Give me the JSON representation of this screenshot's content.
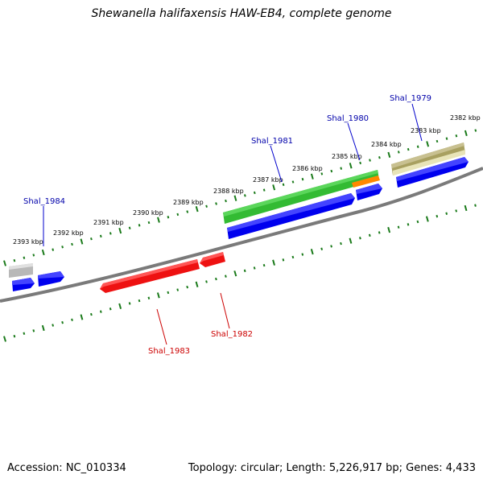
{
  "title": "Shewanella halifaxensis HAW-EB4, complete genome",
  "footer": {
    "accession": "Accession: NC_010334",
    "summary": "Topology: circular; Length: 5,226,917 bp; Genes: 4,433"
  },
  "colors": {
    "backbone": "#7a7a7a",
    "tick": "#1a7a1a",
    "forward_cds": "#0000ee",
    "reverse_cds": "#ee1111",
    "gene_green": "#33bb33",
    "gene_olive": "#a8a060",
    "gene_gray": "#b0b0b0",
    "gene_orange": "#ff8800",
    "label_forward": "#0000aa",
    "label_reverse": "#cc0000"
  },
  "ticks": [
    {
      "label": "2393 kbp"
    },
    {
      "label": "2392 kbp"
    },
    {
      "label": "2391 kbp"
    },
    {
      "label": "2390 kbp"
    },
    {
      "label": "2389 kbp"
    },
    {
      "label": "2388 kbp"
    },
    {
      "label": "2387 kbp"
    },
    {
      "label": "2386 kbp"
    },
    {
      "label": "2385 kbp"
    },
    {
      "label": "2384 kbp"
    },
    {
      "label": "2383 kbp"
    },
    {
      "label": "2382 kbp"
    }
  ],
  "gene_labels": [
    {
      "name": "Shal_1984",
      "strand": "forward"
    },
    {
      "name": "Shal_1981",
      "strand": "forward"
    },
    {
      "name": "Shal_1980",
      "strand": "forward"
    },
    {
      "name": "Shal_1979",
      "strand": "forward"
    },
    {
      "name": "Shal_1983",
      "strand": "reverse"
    },
    {
      "name": "Shal_1982",
      "strand": "reverse"
    }
  ]
}
